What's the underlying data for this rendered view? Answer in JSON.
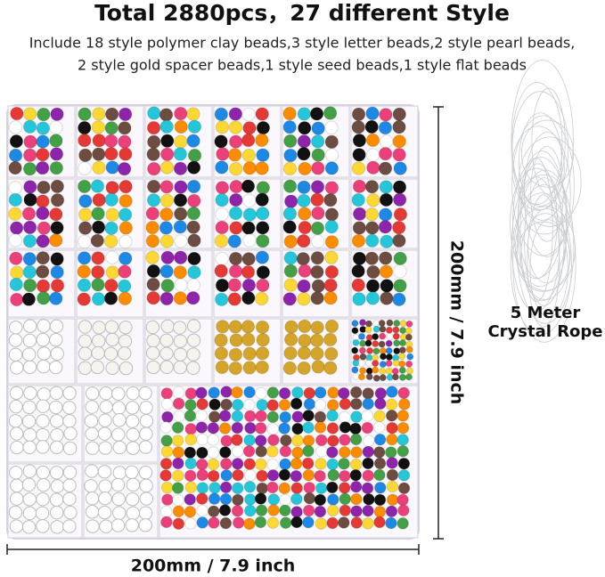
{
  "header": {
    "title": "Total 2880pcs，27 different Style",
    "subtitle_lines": [
      "Include 18 style polymer clay beads,3 style letter beads,2 style pearl beads,",
      "2 style gold spacer beads,1 style seed beads,1 style flat beads"
    ]
  },
  "dimensions": {
    "height": "200mm / 7.9 inch",
    "width": "200mm / 7.9 inch"
  },
  "rope": {
    "lines": [
      "5 Meter",
      "Crystal Rope"
    ]
  }
}
